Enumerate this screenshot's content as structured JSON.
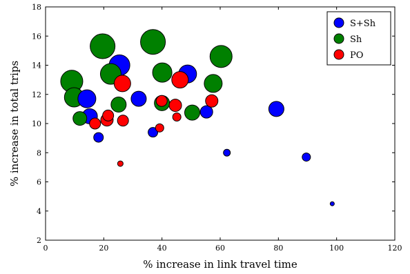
{
  "chart_data": {
    "type": "scatter",
    "xlabel": "% increase in link travel time",
    "ylabel": "% increase in total trips",
    "xlim": [
      0,
      120
    ],
    "ylim": [
      2,
      18
    ],
    "xticks": [
      0,
      20,
      40,
      60,
      80,
      100,
      120
    ],
    "yticks": [
      2,
      4,
      6,
      8,
      10,
      12,
      14,
      16,
      18
    ],
    "grid": false,
    "legend_position": "top-right",
    "series": [
      {
        "name": "S+Sh",
        "color": "#0000ff",
        "points": [
          {
            "x": 14.2,
            "y": 11.7,
            "size": 13
          },
          {
            "x": 15.2,
            "y": 10.5,
            "size": 11
          },
          {
            "x": 25.4,
            "y": 14.0,
            "size": 15
          },
          {
            "x": 32.0,
            "y": 11.7,
            "size": 11
          },
          {
            "x": 48.8,
            "y": 13.4,
            "size": 13
          },
          {
            "x": 79.3,
            "y": 11.0,
            "size": 11
          },
          {
            "x": 18.2,
            "y": 9.05,
            "size": 7
          },
          {
            "x": 36.9,
            "y": 9.4,
            "size": 7
          },
          {
            "x": 55.3,
            "y": 10.8,
            "size": 9
          },
          {
            "x": 62.3,
            "y": 8.0,
            "size": 5
          },
          {
            "x": 89.6,
            "y": 7.7,
            "size": 6
          },
          {
            "x": 98.5,
            "y": 4.5,
            "size": 3
          }
        ]
      },
      {
        "name": "Sh",
        "color": "#008000",
        "points": [
          {
            "x": 9.0,
            "y": 12.9,
            "size": 16
          },
          {
            "x": 9.8,
            "y": 11.8,
            "size": 14
          },
          {
            "x": 11.8,
            "y": 10.35,
            "size": 10
          },
          {
            "x": 19.6,
            "y": 15.3,
            "size": 18
          },
          {
            "x": 22.4,
            "y": 13.4,
            "size": 15
          },
          {
            "x": 25.1,
            "y": 11.3,
            "size": 11
          },
          {
            "x": 36.9,
            "y": 15.6,
            "size": 18
          },
          {
            "x": 40.1,
            "y": 13.5,
            "size": 14
          },
          {
            "x": 40.0,
            "y": 11.4,
            "size": 11
          },
          {
            "x": 50.4,
            "y": 10.75,
            "size": 11
          },
          {
            "x": 57.6,
            "y": 12.75,
            "size": 13
          },
          {
            "x": 60.3,
            "y": 14.6,
            "size": 16
          }
        ]
      },
      {
        "name": "PO",
        "color": "#ff0000",
        "points": [
          {
            "x": 17.0,
            "y": 10.0,
            "size": 8
          },
          {
            "x": 21.1,
            "y": 10.25,
            "size": 9
          },
          {
            "x": 21.5,
            "y": 10.55,
            "size": 8
          },
          {
            "x": 26.4,
            "y": 12.75,
            "size": 12
          },
          {
            "x": 26.6,
            "y": 10.2,
            "size": 8
          },
          {
            "x": 25.7,
            "y": 7.25,
            "size": 4
          },
          {
            "x": 39.2,
            "y": 9.7,
            "size": 6
          },
          {
            "x": 39.9,
            "y": 11.55,
            "size": 8
          },
          {
            "x": 44.6,
            "y": 11.25,
            "size": 9
          },
          {
            "x": 46.2,
            "y": 13.0,
            "size": 12
          },
          {
            "x": 45.1,
            "y": 10.45,
            "size": 6
          },
          {
            "x": 57.1,
            "y": 11.55,
            "size": 9
          }
        ]
      }
    ]
  }
}
